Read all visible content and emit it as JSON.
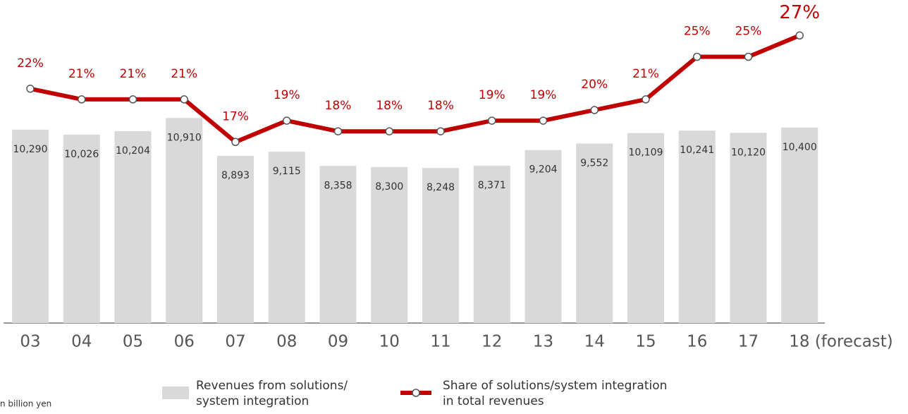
{
  "chart_data": {
    "type": "bar_line",
    "categories": [
      "03",
      "04",
      "05",
      "06",
      "07",
      "08",
      "09",
      "10",
      "11",
      "12",
      "13",
      "14",
      "15",
      "16",
      "17",
      "18 (forecast)"
    ],
    "series": [
      {
        "name": "Revenues from solutions/\nsystem integration",
        "type": "bar",
        "color": "#d9d9d9",
        "values": [
          10290,
          10026,
          10204,
          10910,
          8893,
          9115,
          8358,
          8300,
          8248,
          8371,
          9204,
          9552,
          10109,
          10241,
          10120,
          10400
        ],
        "value_labels": [
          "10,290",
          "10,026",
          "10,204",
          "10,910",
          "8,893",
          "9,115",
          "8,358",
          "8,300",
          "8,248",
          "8,371",
          "9,204",
          "9,552",
          "10,109",
          "10,241",
          "10,120",
          "10,400"
        ]
      },
      {
        "name": "Share of solutions/system integration\nin total revenues",
        "type": "line",
        "axis": "y2",
        "color": "#c00000",
        "values": [
          22,
          21,
          21,
          21,
          17,
          19,
          18,
          18,
          18,
          19,
          19,
          20,
          21,
          25,
          25,
          27
        ],
        "value_labels": [
          "22%",
          "21%",
          "21%",
          "21%",
          "17%",
          "19%",
          "18%",
          "18%",
          "18%",
          "19%",
          "19%",
          "20%",
          "21%",
          "25%",
          "25%",
          "27%"
        ]
      }
    ],
    "ylim": [
      0,
      17000
    ],
    "y2lim": [
      0,
      30
    ],
    "unit_note": "n billion yen"
  }
}
